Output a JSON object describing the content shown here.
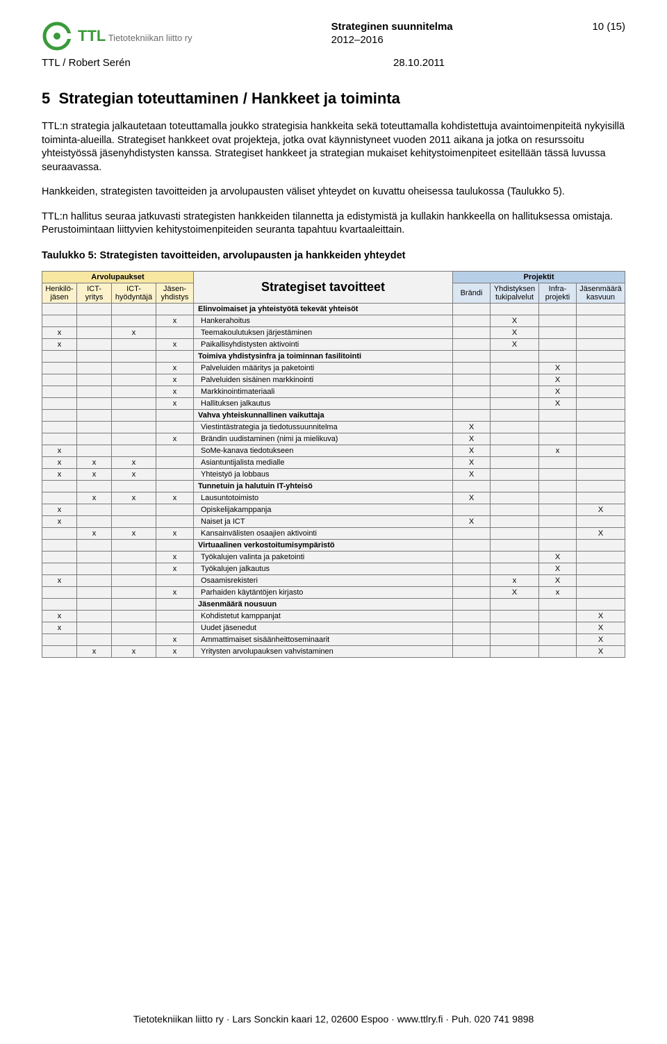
{
  "header": {
    "org_name": "Tietotekniikan liitto ry",
    "doc_title": "Strateginen suunnitelma",
    "doc_years": "2012–2016",
    "page_indicator": "10 (15)",
    "author_line": "TTL / Robert Serén",
    "date": "28.10.2011"
  },
  "colors": {
    "logo_green": "#3a9a3a",
    "arvo_header_bg": "#f7e7a1",
    "arvo_sub_bg": "#fbf2cc",
    "proj_header_bg": "#b8cfe8",
    "proj_sub_bg": "#dbe6f3",
    "center_bg": "#f2f2f2",
    "row_bg": "#f2f2f2",
    "border": "#7a7a7a"
  },
  "section": {
    "number": "5",
    "title": "Strategian toteuttaminen / Hankkeet ja toiminta"
  },
  "paragraphs": [
    "TTL:n strategia jalkautetaan toteuttamalla joukko strategisia hankkeita sekä toteuttamalla kohdistettuja avaintoimenpiteitä nykyisillä toiminta-alueilla. Strategiset hankkeet ovat projekteja, jotka ovat käynnistyneet vuoden 2011 aikana ja jotka on resurssoitu yhteistyössä jäsenyhdistysten kanssa. Strategiset hankkeet ja strategian mukaiset kehitystoimenpiteet esitellään tässä luvussa seuraavassa.",
    "Hankkeiden, strategisten tavoitteiden ja arvolupausten väliset yhteydet on kuvattu oheisessa taulukossa (Taulukko 5).",
    "TTL:n hallitus seuraa jatkuvasti strategisten hankkeiden tilannetta ja edistymistä ja kullakin hankkeella on hallituksessa omistaja. Perustoimintaan liittyvien kehitystoimenpiteiden seuranta tapahtuu kvartaaleittain."
  ],
  "table_caption": "Taulukko 5: Strategisten tavoitteiden, arvolupausten ja hankkeiden yhteydet",
  "table": {
    "group_headers": {
      "arvo": "Arvolupaukset",
      "center": "Strategiset tavoitteet",
      "proj": "Projektit"
    },
    "arvo_cols": [
      {
        "l1": "Henkilö-",
        "l2": "jäsen"
      },
      {
        "l1": "ICT-",
        "l2": "yritys"
      },
      {
        "l1": "ICT-",
        "l2": "hyödyntäjä"
      },
      {
        "l1": "Jäsen-",
        "l2": "yhdistys"
      }
    ],
    "proj_cols": [
      {
        "l1": "Brändi",
        "l2": ""
      },
      {
        "l1": "Yhdistyksen",
        "l2": "tukipalvelut"
      },
      {
        "l1": "Infra-",
        "l2": "projekti"
      },
      {
        "l1": "Jäsenmäärä",
        "l2": "kasvuun"
      }
    ],
    "sections": [
      {
        "title": "Elinvoimaiset ja yhteistyötä tekevät yhteisöt",
        "rows": [
          {
            "label": "Hankerahoitus",
            "a": [
              "",
              "",
              "",
              "x"
            ],
            "p": [
              "",
              "X",
              "",
              ""
            ]
          },
          {
            "label": "Teemakoulutuksen järjestäminen",
            "a": [
              "x",
              "",
              "x",
              ""
            ],
            "p": [
              "",
              "X",
              "",
              ""
            ]
          },
          {
            "label": "Paikallisyhdistysten aktivointi",
            "a": [
              "x",
              "",
              "",
              "x"
            ],
            "p": [
              "",
              "X",
              "",
              ""
            ]
          }
        ]
      },
      {
        "title": "Toimiva yhdistysinfra ja toiminnan fasilitointi",
        "rows": [
          {
            "label": "Palveluiden määritys ja paketointi",
            "a": [
              "",
              "",
              "",
              "x"
            ],
            "p": [
              "",
              "",
              "X",
              ""
            ]
          },
          {
            "label": "Palveluiden sisäinen markkinointi",
            "a": [
              "",
              "",
              "",
              "x"
            ],
            "p": [
              "",
              "",
              "X",
              ""
            ]
          },
          {
            "label": "Markkinointimateriaali",
            "a": [
              "",
              "",
              "",
              "x"
            ],
            "p": [
              "",
              "",
              "X",
              ""
            ]
          },
          {
            "label": "Hallituksen jalkautus",
            "a": [
              "",
              "",
              "",
              "x"
            ],
            "p": [
              "",
              "",
              "X",
              ""
            ]
          }
        ]
      },
      {
        "title": "Vahva yhteiskunnallinen vaikuttaja",
        "rows": [
          {
            "label": "Viestintästrategia ja tiedotussuunnitelma",
            "a": [
              "",
              "",
              "",
              ""
            ],
            "p": [
              "X",
              "",
              "",
              ""
            ]
          },
          {
            "label": "Brändin uudistaminen (nimi ja mielikuva)",
            "a": [
              "",
              "",
              "",
              "x"
            ],
            "p": [
              "X",
              "",
              "",
              ""
            ]
          },
          {
            "label": "SoMe-kanava tiedotukseen",
            "a": [
              "x",
              "",
              "",
              ""
            ],
            "p": [
              "X",
              "",
              "x",
              ""
            ]
          },
          {
            "label": "Asiantuntijalista medialle",
            "a": [
              "x",
              "x",
              "x",
              ""
            ],
            "p": [
              "X",
              "",
              "",
              ""
            ]
          },
          {
            "label": "Yhteistyö ja lobbaus",
            "a": [
              "x",
              "x",
              "x",
              ""
            ],
            "p": [
              "X",
              "",
              "",
              ""
            ]
          }
        ]
      },
      {
        "title": "Tunnetuin ja halutuin IT-yhteisö",
        "rows": [
          {
            "label": "Lausuntotoimisto",
            "a": [
              "",
              "x",
              "x",
              "x"
            ],
            "p": [
              "X",
              "",
              "",
              ""
            ]
          },
          {
            "label": "Opiskelijakamppanja",
            "a": [
              "x",
              "",
              "",
              ""
            ],
            "p": [
              "",
              "",
              "",
              "X"
            ]
          },
          {
            "label": "Naiset ja ICT",
            "a": [
              "x",
              "",
              "",
              ""
            ],
            "p": [
              "X",
              "",
              "",
              ""
            ]
          },
          {
            "label": "Kansainvälisten osaajien aktivointi",
            "a": [
              "",
              "x",
              "x",
              "x"
            ],
            "p": [
              "",
              "",
              "",
              "X"
            ]
          }
        ]
      },
      {
        "title": "Virtuaalinen verkostoitumisympäristö",
        "rows": [
          {
            "label": "Työkalujen valinta ja paketointi",
            "a": [
              "",
              "",
              "",
              "x"
            ],
            "p": [
              "",
              "",
              "X",
              ""
            ]
          },
          {
            "label": "Työkalujen jalkautus",
            "a": [
              "",
              "",
              "",
              "x"
            ],
            "p": [
              "",
              "",
              "X",
              ""
            ]
          },
          {
            "label": "Osaamisrekisteri",
            "a": [
              "x",
              "",
              "",
              ""
            ],
            "p": [
              "",
              "x",
              "X",
              ""
            ]
          },
          {
            "label": "Parhaiden käytäntöjen kirjasto",
            "a": [
              "",
              "",
              "",
              "x"
            ],
            "p": [
              "",
              "X",
              "x",
              ""
            ]
          }
        ]
      },
      {
        "title": "Jäsenmäärä nousuun",
        "rows": [
          {
            "label": "Kohdistetut kamppanjat",
            "a": [
              "x",
              "",
              "",
              ""
            ],
            "p": [
              "",
              "",
              "",
              "X"
            ]
          },
          {
            "label": "Uudet jäsenedut",
            "a": [
              "x",
              "",
              "",
              ""
            ],
            "p": [
              "",
              "",
              "",
              "X"
            ]
          },
          {
            "label": "Ammattimaiset sisäänheittoseminaarit",
            "a": [
              "",
              "",
              "",
              "x"
            ],
            "p": [
              "",
              "",
              "",
              "X"
            ]
          },
          {
            "label": "Yritysten arvolupauksen vahvistaminen",
            "a": [
              "",
              "x",
              "x",
              "x"
            ],
            "p": [
              "",
              "",
              "",
              "X"
            ]
          }
        ]
      }
    ]
  },
  "footer": "Tietotekniikan liitto ry · Lars Sonckin kaari 12, 02600 Espoo · www.ttlry.fi · Puh. 020 741 9898"
}
